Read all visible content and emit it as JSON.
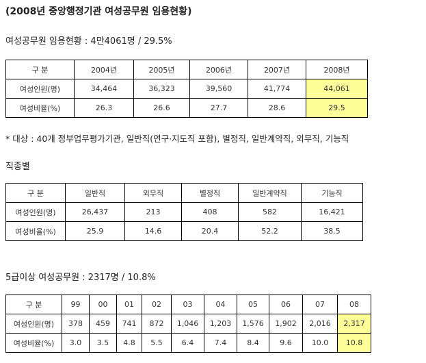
{
  "title": "(2008년 중앙행정기관 여성공무원 임용현황)",
  "section1": {
    "heading": "여성공무원 임용현황 : 4만4061명 / 29.5%",
    "table": {
      "header": [
        "구 분",
        "2004년",
        "2005년",
        "2006년",
        "2007년",
        "2008년"
      ],
      "rows": [
        [
          "여성인원(명)",
          "34,464",
          "36,323",
          "39,560",
          "41,774",
          "44,061"
        ],
        [
          "여성비율(%)",
          "26.3",
          "26.6",
          "27.7",
          "28.6",
          "29.5"
        ]
      ]
    }
  },
  "note": "* 대상 : 40개 정부업무평가기관, 일반직(연구·지도직 포함), 별정직, 일반계약직, 외무직, 기능직",
  "section2": {
    "heading": "직종별",
    "table": {
      "header": [
        "구 분",
        "일반직",
        "외무직",
        "별정직",
        "일반계약직",
        "기능직"
      ],
      "rows": [
        [
          "여성인원(명)",
          "26,437",
          "213",
          "408",
          "582",
          "16,421"
        ],
        [
          "여성비율(%)",
          "25.9",
          "14.6",
          "20.4",
          "52.2",
          "38.5"
        ]
      ]
    }
  },
  "section3": {
    "heading": "5급이상 여성공무원 : 2317명 / 10.8%",
    "table": {
      "header": [
        "구 분",
        "99",
        "00",
        "01",
        "02",
        "03",
        "04",
        "05",
        "06",
        "07",
        "08"
      ],
      "rows": [
        [
          "여성인원(명)",
          "378",
          "459",
          "741",
          "872",
          "1,046",
          "1,203",
          "1,576",
          "1,902",
          "2,016",
          "2,317"
        ],
        [
          "여성비율(%)",
          "3.0",
          "3.5",
          "4.8",
          "5.5",
          "6.4",
          "7.4",
          "8.4",
          "9.6",
          "10.0",
          "10.8"
        ]
      ]
    }
  }
}
